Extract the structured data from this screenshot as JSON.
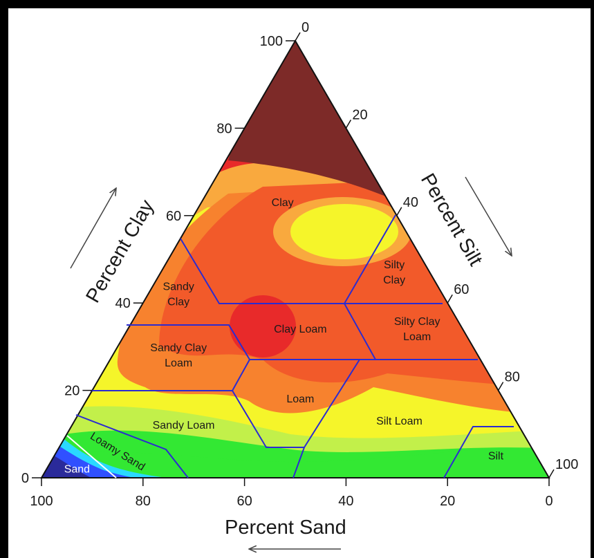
{
  "chart_data": {
    "type": "ternary-contour",
    "axes": {
      "clay": {
        "title": "Percent Clay",
        "ticks": [
          "0",
          "20",
          "40",
          "60",
          "80",
          "100"
        ]
      },
      "silt": {
        "title": "Percent Silt",
        "ticks": [
          "0",
          "20",
          "40",
          "60",
          "80",
          "100"
        ]
      },
      "sand": {
        "title": "Percent Sand",
        "ticks": [
          "100",
          "80",
          "60",
          "40",
          "20",
          "0"
        ]
      }
    },
    "regions": [
      {
        "name": "Clay",
        "label": "Clay",
        "clay": 63,
        "sand": 21
      },
      {
        "name": "Silty Clay",
        "label": "Silty\nClay",
        "clay": 47,
        "sand": 7
      },
      {
        "name": "Sandy Clay",
        "label": "Sandy\nClay",
        "clay": 42,
        "sand": 52
      },
      {
        "name": "Clay Loam",
        "label": "Clay Loam",
        "clay": 34,
        "sand": 32
      },
      {
        "name": "Silty Clay Loam",
        "label": "Silty Clay\nLoam",
        "clay": 34,
        "sand": 9
      },
      {
        "name": "Sandy Clay Loam",
        "label": "Sandy Clay\nLoam",
        "clay": 28,
        "sand": 59
      },
      {
        "name": "Loam",
        "label": "Loam",
        "clay": 18,
        "sand": 40
      },
      {
        "name": "Sandy Loam",
        "label": "Sandy Loam",
        "clay": 12,
        "sand": 66
      },
      {
        "name": "Silt Loam",
        "label": "Silt Loam",
        "clay": 13,
        "sand": 23
      },
      {
        "name": "Loamy Sand",
        "label": "Loamy Sand",
        "clay": 6,
        "sand": 82
      },
      {
        "name": "Silt",
        "label": "Silt",
        "clay": 5,
        "sand": 8
      },
      {
        "name": "Sand",
        "label": "Sand",
        "clay": 2,
        "sand": 92
      }
    ],
    "colors": {
      "brown": "#7d2a28",
      "red": "#e82a2a",
      "orange_red": "#f25a2a",
      "orange": "#f7822e",
      "light_orange": "#f9a93e",
      "yellow": "#f5f52a",
      "yellow_green": "#c2f04a",
      "green": "#33e833",
      "cyan": "#2ad9ff",
      "blue": "#3050ff",
      "dark_blue": "#2a2a9a",
      "boundary": "#2b2bd1"
    }
  }
}
